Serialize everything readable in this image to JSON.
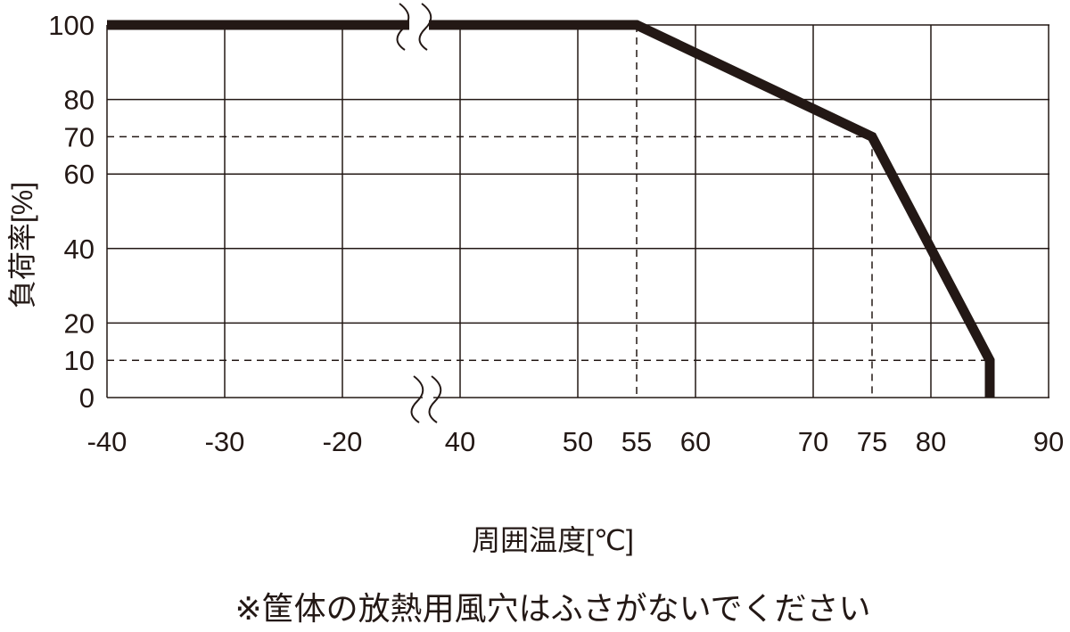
{
  "chart_data": {
    "type": "line",
    "title": "",
    "xlabel": "周囲温度[℃]",
    "ylabel": "負荷率[%]",
    "note": "※筐体の放熱用風穴はふさがないでください",
    "x_ticks": [
      -40,
      -30,
      -20,
      40,
      50,
      55,
      60,
      70,
      75,
      80,
      90
    ],
    "x_tick_labels": [
      "-40",
      "-30",
      "-20",
      "40",
      "50",
      "55",
      "60",
      "70",
      "75",
      "80",
      "90"
    ],
    "y_ticks": [
      0,
      10,
      20,
      40,
      60,
      70,
      80,
      100
    ],
    "y_tick_labels": [
      "0",
      "10",
      "20",
      "40",
      "60",
      "70",
      "80",
      "100"
    ],
    "xlim": [
      -40,
      90
    ],
    "x_axis_break": [
      -20,
      40
    ],
    "ylim": [
      0,
      100
    ],
    "grid": true,
    "solid_grid_x": [
      -40,
      -30,
      -20,
      40,
      50,
      60,
      70,
      80,
      90
    ],
    "solid_grid_y": [
      0,
      20,
      40,
      60,
      80,
      100
    ],
    "dashed_reference_lines": [
      {
        "axis": "x",
        "value": 55,
        "from": 0,
        "to": 100
      },
      {
        "axis": "x",
        "value": 75,
        "from": 0,
        "to": 70
      },
      {
        "axis": "y",
        "value": 70,
        "from": -40,
        "to": 75
      },
      {
        "axis": "y",
        "value": 10,
        "from": -40,
        "to": 85
      }
    ],
    "series": [
      {
        "x": [
          -40,
          55,
          75,
          85,
          85
        ],
        "y": [
          100,
          100,
          70,
          10,
          0
        ],
        "color": "#231815"
      }
    ]
  }
}
